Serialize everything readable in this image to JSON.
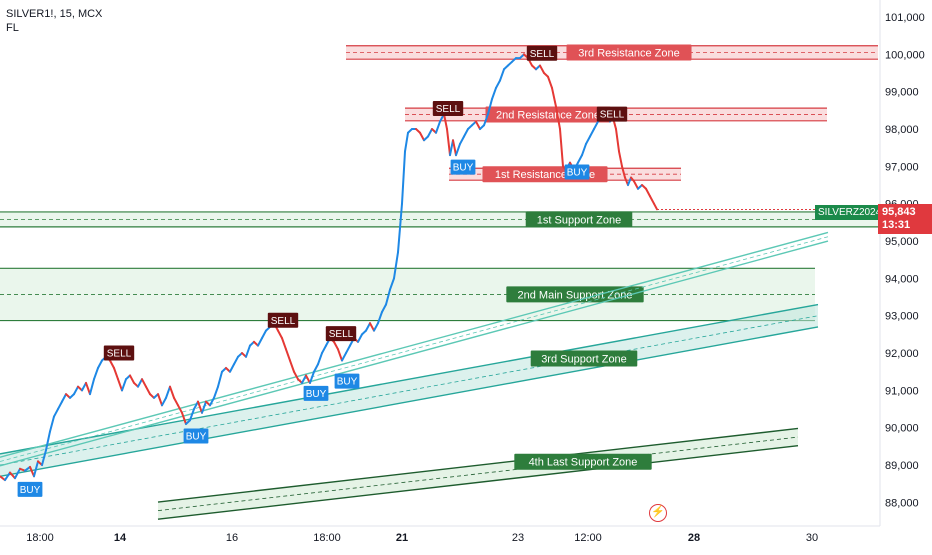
{
  "header": {
    "symbol_line": "SILVER1!, 15, MCX",
    "indicator": "FL"
  },
  "badges": {
    "symbol": "SILVERZ2024",
    "last_price": "95,843",
    "countdown": "13:31"
  },
  "colors": {
    "resistance_fill": "#f7c6c8",
    "resistance_label": "#e05256",
    "support_fill": "#d6eed9",
    "support_label": "#2e7d3c",
    "channel": "#26a69a",
    "price_up": "#1e88e5",
    "price_down": "#e53935",
    "sell_tag": "#5d1010",
    "buy_tag": "#1e88e5",
    "last_price_badge": "#e0393e"
  },
  "icons": {
    "flash": "flash-icon"
  },
  "chart_data": {
    "type": "candlestick",
    "title": "SILVER1!, 15, MCX",
    "y_axis": {
      "ylim": [
        87500,
        101200
      ],
      "ticks": [
        "101,000",
        "100,000",
        "99,000",
        "98,000",
        "97,000",
        "96,000",
        "95,000",
        "94,000",
        "93,000",
        "92,000",
        "91,000",
        "90,000",
        "89,000",
        "88,000"
      ]
    },
    "x_axis": {
      "ticks": [
        "18:00",
        "14",
        "16",
        "18:00",
        "21",
        "23",
        "12:00",
        "28",
        "30"
      ],
      "bold_ticks": [
        "14",
        "21",
        "28"
      ]
    },
    "price_path": [
      [
        0,
        88700
      ],
      [
        5,
        88600
      ],
      [
        10,
        88800
      ],
      [
        15,
        88650
      ],
      [
        20,
        88900
      ],
      [
        25,
        88850
      ],
      [
        30,
        88950
      ],
      [
        34,
        88700
      ],
      [
        38,
        89100
      ],
      [
        42,
        89000
      ],
      [
        46,
        89400
      ],
      [
        50,
        89900
      ],
      [
        54,
        90300
      ],
      [
        58,
        90500
      ],
      [
        62,
        90700
      ],
      [
        66,
        90900
      ],
      [
        70,
        90800
      ],
      [
        74,
        90900
      ],
      [
        78,
        91100
      ],
      [
        82,
        91000
      ],
      [
        86,
        91200
      ],
      [
        90,
        90900
      ],
      [
        94,
        91300
      ],
      [
        98,
        91600
      ],
      [
        102,
        91800
      ],
      [
        106,
        91900
      ],
      [
        110,
        91800
      ],
      [
        114,
        91600
      ],
      [
        118,
        91300
      ],
      [
        122,
        91000
      ],
      [
        126,
        91300
      ],
      [
        130,
        91400
      ],
      [
        134,
        91200
      ],
      [
        138,
        91100
      ],
      [
        142,
        91300
      ],
      [
        146,
        91100
      ],
      [
        150,
        90900
      ],
      [
        154,
        90800
      ],
      [
        158,
        90900
      ],
      [
        162,
        90600
      ],
      [
        166,
        90800
      ],
      [
        170,
        91100
      ],
      [
        174,
        90800
      ],
      [
        178,
        90600
      ],
      [
        182,
        90400
      ],
      [
        186,
        90100
      ],
      [
        190,
        90200
      ],
      [
        194,
        90500
      ],
      [
        198,
        90700
      ],
      [
        202,
        90400
      ],
      [
        206,
        90700
      ],
      [
        210,
        90600
      ],
      [
        214,
        90800
      ],
      [
        218,
        91100
      ],
      [
        222,
        91500
      ],
      [
        226,
        91600
      ],
      [
        230,
        91500
      ],
      [
        234,
        91700
      ],
      [
        238,
        91900
      ],
      [
        242,
        92000
      ],
      [
        246,
        91900
      ],
      [
        250,
        92200
      ],
      [
        254,
        92300
      ],
      [
        258,
        92200
      ],
      [
        262,
        92400
      ],
      [
        266,
        92600
      ],
      [
        270,
        92700
      ],
      [
        274,
        92800
      ],
      [
        278,
        92600
      ],
      [
        282,
        92400
      ],
      [
        286,
        92100
      ],
      [
        290,
        91800
      ],
      [
        294,
        91500
      ],
      [
        298,
        91300
      ],
      [
        302,
        91200
      ],
      [
        306,
        91400
      ],
      [
        310,
        91200
      ],
      [
        314,
        91500
      ],
      [
        318,
        91700
      ],
      [
        322,
        92000
      ],
      [
        326,
        92200
      ],
      [
        330,
        92400
      ],
      [
        334,
        92300
      ],
      [
        338,
        92100
      ],
      [
        342,
        91800
      ],
      [
        346,
        92000
      ],
      [
        350,
        92200
      ],
      [
        354,
        92400
      ],
      [
        358,
        92300
      ],
      [
        362,
        92500
      ],
      [
        366,
        92600
      ],
      [
        370,
        92800
      ],
      [
        374,
        92600
      ],
      [
        378,
        92800
      ],
      [
        382,
        93100
      ],
      [
        386,
        93300
      ],
      [
        390,
        93700
      ],
      [
        394,
        94000
      ],
      [
        398,
        94700
      ],
      [
        402,
        96000
      ],
      [
        405,
        97400
      ],
      [
        408,
        97900
      ],
      [
        412,
        98000
      ],
      [
        416,
        98000
      ],
      [
        420,
        97900
      ],
      [
        424,
        97700
      ],
      [
        428,
        97800
      ],
      [
        432,
        98000
      ],
      [
        436,
        97900
      ],
      [
        440,
        98200
      ],
      [
        444,
        98400
      ],
      [
        447,
        98000
      ],
      [
        450,
        97300
      ],
      [
        453,
        97700
      ],
      [
        456,
        97300
      ],
      [
        460,
        97600
      ],
      [
        464,
        97800
      ],
      [
        468,
        98000
      ],
      [
        472,
        98100
      ],
      [
        476,
        98200
      ],
      [
        480,
        98000
      ],
      [
        484,
        98100
      ],
      [
        488,
        98400
      ],
      [
        492,
        98800
      ],
      [
        496,
        99100
      ],
      [
        500,
        99300
      ],
      [
        504,
        99600
      ],
      [
        508,
        99700
      ],
      [
        512,
        99800
      ],
      [
        516,
        99900
      ],
      [
        520,
        99900
      ],
      [
        524,
        100000
      ],
      [
        528,
        99900
      ],
      [
        532,
        99700
      ],
      [
        536,
        99600
      ],
      [
        540,
        99700
      ],
      [
        544,
        99500
      ],
      [
        548,
        99400
      ],
      [
        552,
        99100
      ],
      [
        556,
        98600
      ],
      [
        560,
        98000
      ],
      [
        563,
        97000
      ],
      [
        566,
        96900
      ],
      [
        570,
        97100
      ],
      [
        574,
        96900
      ],
      [
        578,
        97100
      ],
      [
        582,
        97300
      ],
      [
        586,
        97600
      ],
      [
        590,
        97800
      ],
      [
        594,
        98000
      ],
      [
        598,
        98200
      ],
      [
        602,
        98300
      ],
      [
        606,
        98400
      ],
      [
        610,
        98200
      ],
      [
        613,
        98300
      ],
      [
        616,
        98000
      ],
      [
        619,
        97400
      ],
      [
        622,
        97000
      ],
      [
        625,
        96700
      ],
      [
        628,
        96500
      ],
      [
        631,
        96700
      ],
      [
        634,
        96600
      ],
      [
        638,
        96400
      ],
      [
        642,
        96500
      ],
      [
        646,
        96400
      ],
      [
        650,
        96200
      ],
      [
        654,
        96000
      ],
      [
        657,
        95850
      ]
    ],
    "zones": [
      {
        "name": "3rd Resistance Zone",
        "kind": "resistance",
        "range": [
          99870,
          100230
        ]
      },
      {
        "name": "2nd Resistance Zone",
        "kind": "resistance",
        "range": [
          98220,
          98560
        ]
      },
      {
        "name": "1st Resistance Zone",
        "kind": "resistance",
        "range": [
          96630,
          96950
        ]
      },
      {
        "name": "1st Support Zone",
        "kind": "support",
        "range": [
          95380,
          95780
        ]
      },
      {
        "name": "2nd Main Support Zone",
        "kind": "support",
        "range": [
          92870,
          94270
        ]
      }
    ],
    "channels": [
      {
        "name": "3rd Support Zone",
        "kind": "support",
        "start": [
          0,
          88700
        ],
        "end": [
          818,
          92700
        ],
        "width": 600
      },
      {
        "name": "4th Last Support Zone",
        "kind": "support",
        "start": [
          158,
          87550
        ],
        "end": [
          798,
          89520
        ],
        "width": 460
      },
      {
        "name": "",
        "kind": "support",
        "start": [
          0,
          88980
        ],
        "end": [
          828,
          95000
        ],
        "width": 230
      }
    ],
    "signals": [
      {
        "type": "SELL",
        "x": 119,
        "price": 92000
      },
      {
        "type": "SELL",
        "x": 283,
        "price": 92880
      },
      {
        "type": "SELL",
        "x": 341,
        "price": 92520
      },
      {
        "type": "SELL",
        "x": 448,
        "price": 98550
      },
      {
        "type": "SELL",
        "x": 542,
        "price": 100030
      },
      {
        "type": "SELL",
        "x": 612,
        "price": 98400
      },
      {
        "type": "BUY",
        "x": 30,
        "price": 88350
      },
      {
        "type": "BUY",
        "x": 196,
        "price": 89780
      },
      {
        "type": "BUY",
        "x": 316,
        "price": 90920
      },
      {
        "type": "BUY",
        "x": 347,
        "price": 91250
      },
      {
        "type": "BUY",
        "x": 463,
        "price": 96980
      },
      {
        "type": "BUY",
        "x": 577,
        "price": 96850
      }
    ],
    "last_price": 95843,
    "last_price_label": "95,843"
  }
}
